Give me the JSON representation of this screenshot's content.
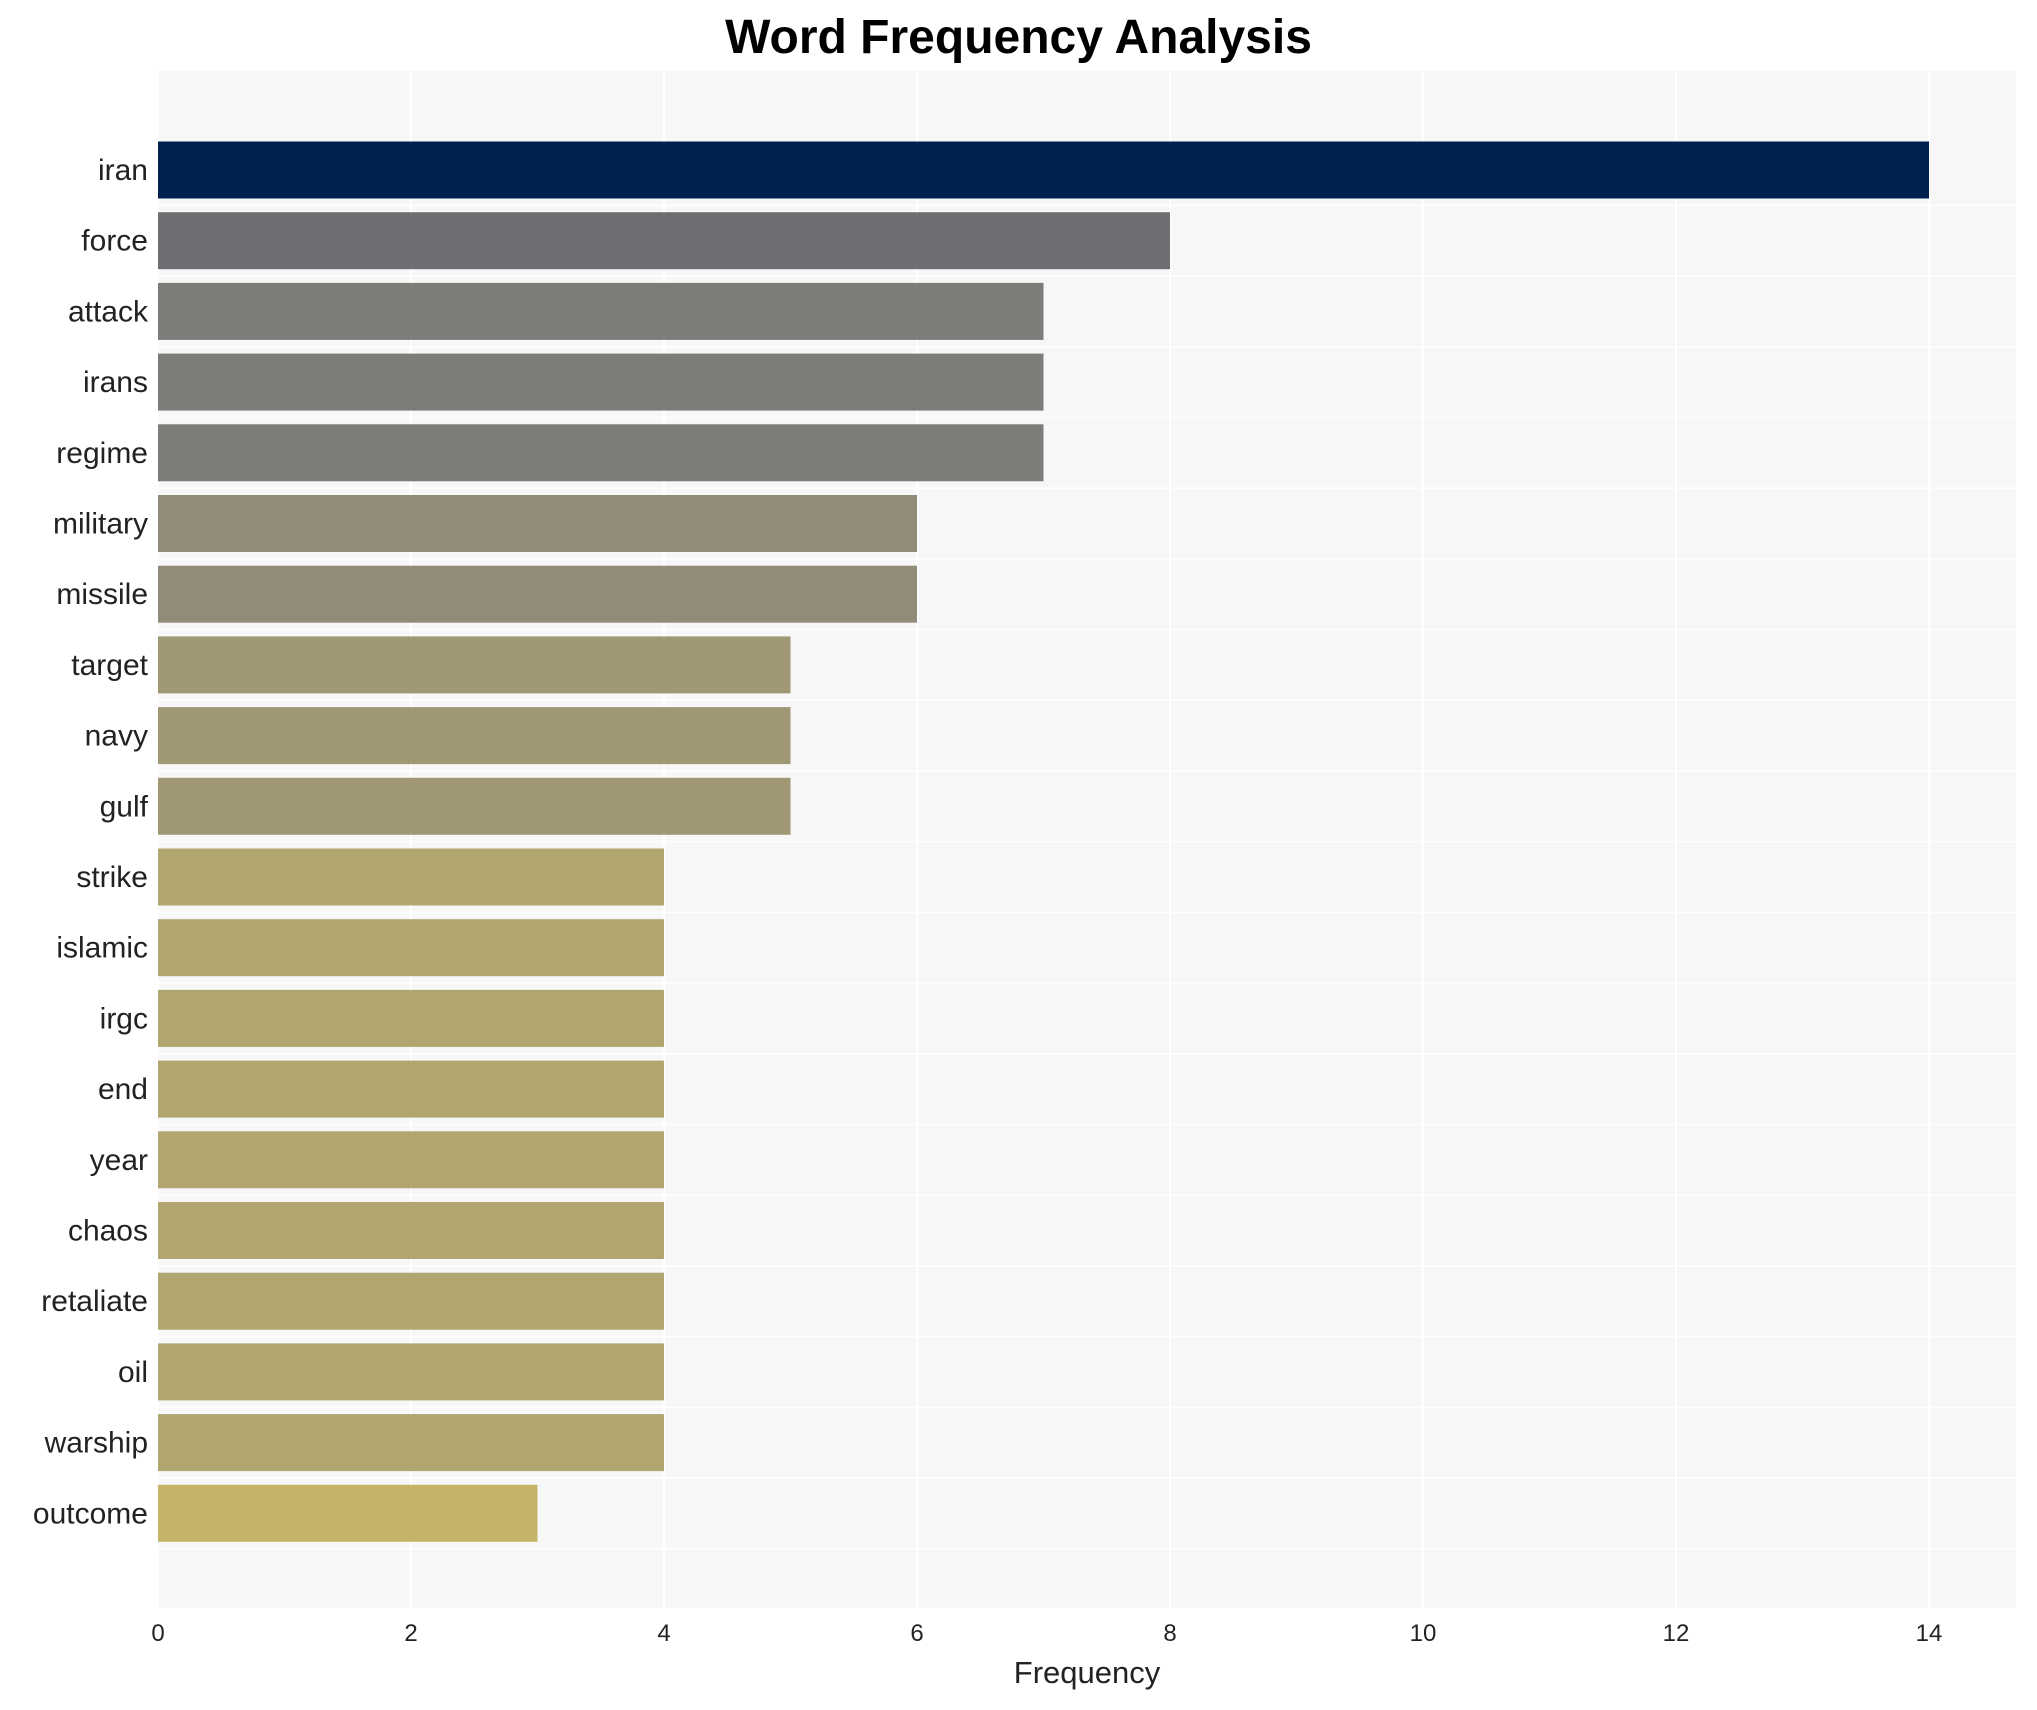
{
  "chart_data": {
    "type": "bar",
    "orientation": "horizontal",
    "title": "Word Frequency Analysis",
    "xlabel": "Frequency",
    "ylabel": "",
    "xlim": [
      0,
      14.7
    ],
    "xticks": [
      0,
      2,
      4,
      6,
      8,
      10,
      12,
      14
    ],
    "grid": true,
    "categories": [
      "iran",
      "force",
      "attack",
      "irans",
      "regime",
      "military",
      "missile",
      "target",
      "navy",
      "gulf",
      "strike",
      "islamic",
      "irgc",
      "end",
      "year",
      "chaos",
      "retaliate",
      "oil",
      "warship",
      "outcome"
    ],
    "values": [
      14,
      8,
      7,
      7,
      7,
      6,
      6,
      5,
      5,
      5,
      4,
      4,
      4,
      4,
      4,
      4,
      4,
      4,
      4,
      3
    ],
    "colors": [
      "#00224e",
      "#6e6f73",
      "#7d7c78",
      "#7d7c78",
      "#7d7c78",
      "#918b79",
      "#918b79",
      "#a09775",
      "#a09775",
      "#a09775",
      "#b1a570",
      "#b1a570",
      "#b1a570",
      "#b1a570",
      "#b1a570",
      "#b1a570",
      "#b1a570",
      "#b1a570",
      "#b1a570",
      "#c4b469"
    ],
    "background": "#f7f7f7"
  }
}
